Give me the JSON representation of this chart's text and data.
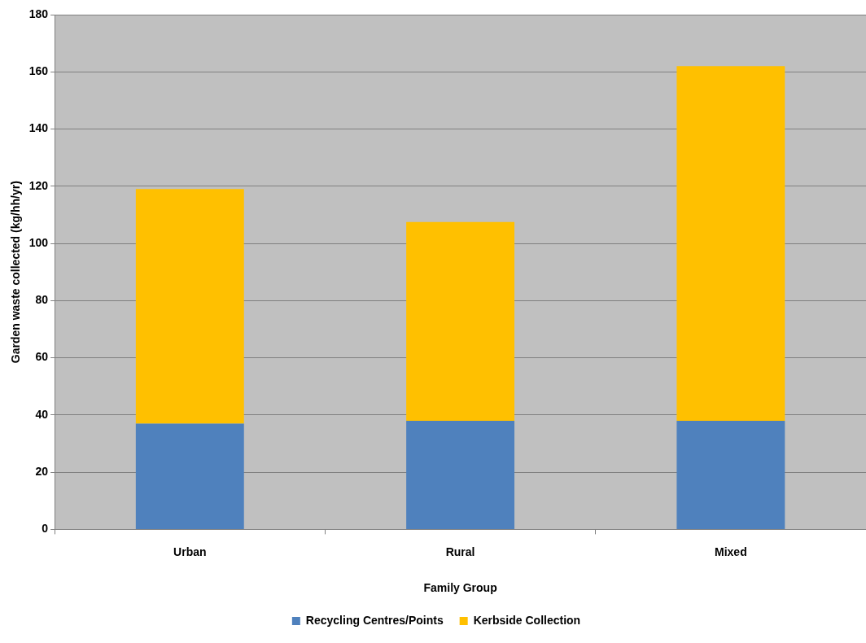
{
  "chart_data": {
    "type": "bar",
    "stacked": true,
    "xlabel": "Family Group",
    "ylabel": "Garden waste collected (kg/hh/yr)",
    "categories": [
      "Urban",
      "Rural",
      "Mixed"
    ],
    "series": [
      {
        "name": "Recycling Centres/Points",
        "color": "#4f81bd",
        "values": [
          37,
          38,
          38
        ]
      },
      {
        "name": "Kerbside Collection",
        "color": "#ffc000",
        "values": [
          82,
          69.5,
          124
        ]
      }
    ],
    "ylim": [
      0,
      180
    ],
    "yticks": [
      0,
      20,
      40,
      60,
      80,
      100,
      120,
      140,
      160,
      180
    ],
    "grid": "y",
    "legend": "bottom"
  }
}
